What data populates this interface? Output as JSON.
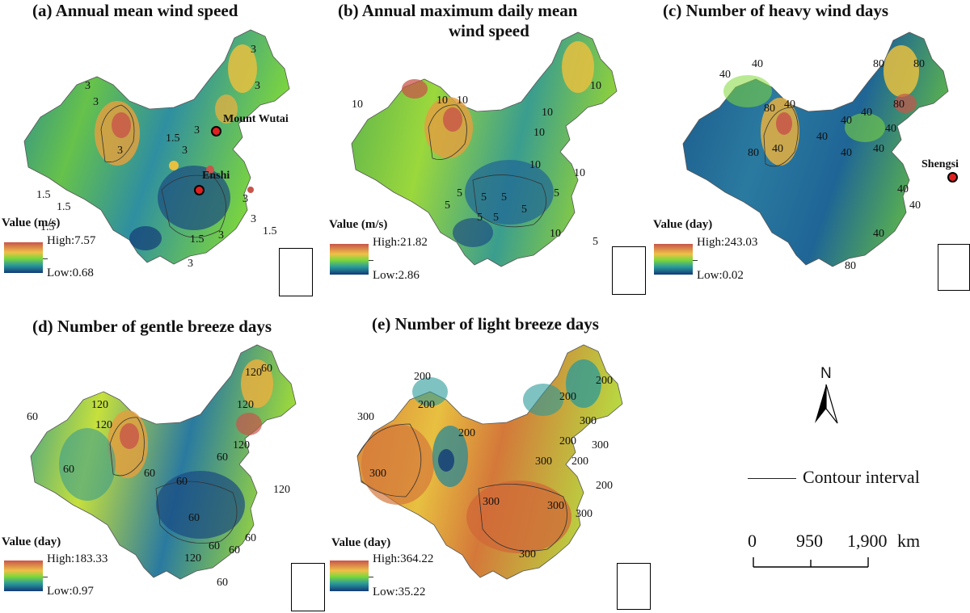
{
  "panels": [
    {
      "id": "a",
      "title": "(a)  Annual mean wind speed",
      "legend_title": "Value (m/s)",
      "high": "High:7.57",
      "low": "Low:0.68",
      "contour_labels": [
        "3",
        "3",
        "3",
        "3",
        "3",
        "3",
        "3",
        "1.5",
        "1.5",
        "1.5",
        "1.5",
        "3",
        "3",
        "1.5",
        "3",
        "1.5",
        "3"
      ],
      "markers": [
        {
          "name": "Mount Wutai"
        },
        {
          "name": "Enshi"
        }
      ]
    },
    {
      "id": "b",
      "title": "(b)  Annual maximum daily mean wind speed",
      "title_line1": "(b)  Annual maximum daily mean",
      "title_line2": "wind speed",
      "legend_title": "Value (m/s)",
      "high": "High:21.82",
      "low": "Low:2.86",
      "contour_labels": [
        "10",
        "10",
        "10",
        "10",
        "10",
        "10",
        "5",
        "5",
        "5",
        "5",
        "5",
        "5",
        "10",
        "5",
        "5",
        "10",
        "10",
        "5"
      ],
      "markers": []
    },
    {
      "id": "c",
      "title": "(c)  Number of heavy wind days",
      "legend_title": "Value (day)",
      "high": "High:243.03",
      "low": "Low:0.02",
      "contour_labels": [
        "40",
        "40",
        "80",
        "80",
        "80",
        "40",
        "80",
        "40",
        "40",
        "40",
        "40",
        "40",
        "40",
        "40",
        "40",
        "80",
        "40",
        "80",
        "40"
      ],
      "markers": [
        {
          "name": "Shengsi"
        }
      ]
    },
    {
      "id": "d",
      "title": "(d)  Number of gentle breeze days",
      "legend_title": "Value (day)",
      "high": "High:183.33",
      "low": "Low:0.97",
      "contour_labels": [
        "60",
        "120",
        "120",
        "60",
        "120",
        "60",
        "60",
        "120",
        "60",
        "60",
        "60",
        "120",
        "60",
        "120",
        "60",
        "60",
        "60",
        "120"
      ],
      "markers": []
    },
    {
      "id": "e",
      "title": "(e)  Number of light breeze days",
      "legend_title": "Value (day)",
      "high": "High:364.22",
      "low": "Low:35.22",
      "contour_labels": [
        "300",
        "200",
        "200",
        "200",
        "300",
        "200",
        "200",
        "300",
        "300",
        "300",
        "300",
        "300",
        "300",
        "200",
        "200",
        "300",
        "200"
      ],
      "markers": []
    }
  ],
  "north_arrow": {
    "label": "N"
  },
  "contour_legend": {
    "label": "Contour interval"
  },
  "scale_bar": {
    "ticks": [
      "0",
      "950",
      "1,900"
    ],
    "unit": "km"
  },
  "colors": {
    "high": "#c8554a",
    "mid_high": "#f0c048",
    "mid": "#7fd83a",
    "mid_low": "#2a9a9a",
    "low": "#123a78",
    "marker": "#e02020"
  }
}
